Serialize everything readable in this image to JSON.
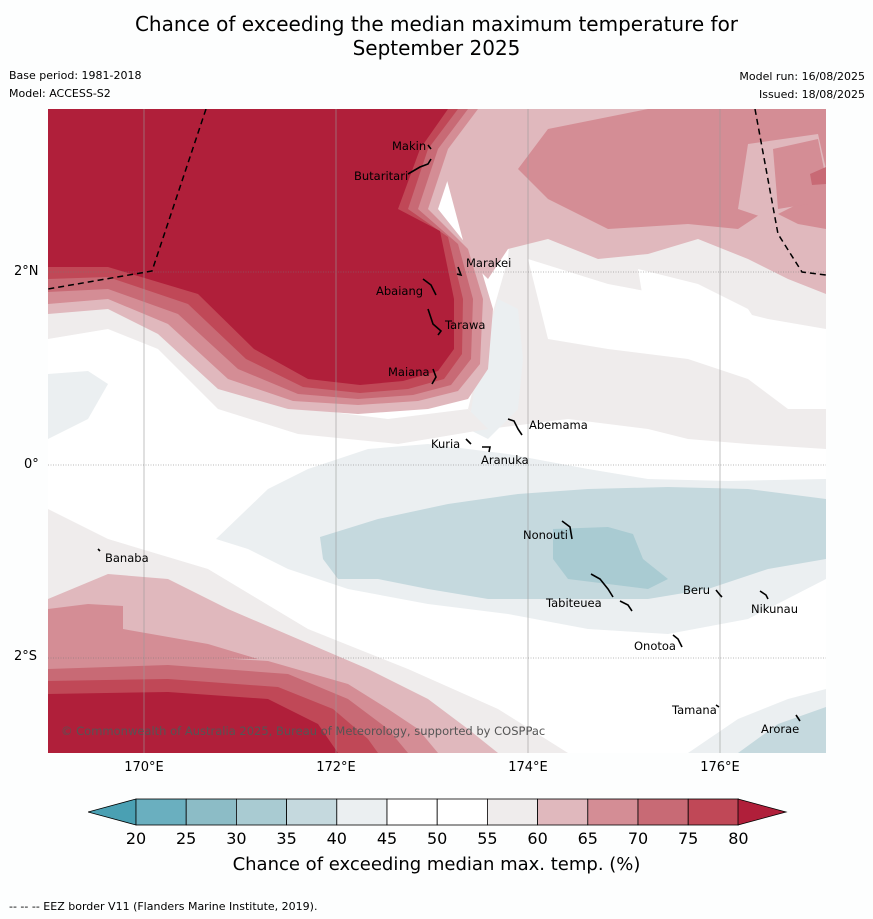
{
  "title_line1": "Chance of exceeding the median maximum temperature for",
  "title_line2": "September 2025",
  "base_period": "Base period: 1981-2018",
  "model": "Model: ACCESS-S2",
  "model_run": "Model run: 16/08/2025",
  "issued": "Issued: 18/08/2025",
  "lat_labels": [
    "2°N",
    "0°",
    "2°S"
  ],
  "lon_labels": [
    "170°E",
    "172°E",
    "174°E",
    "176°E"
  ],
  "islands": [
    "Makin",
    "Butaritari",
    "Marakei",
    "Abaiang",
    "Tarawa",
    "Maiana",
    "Abemama",
    "Kuria",
    "Aranuka",
    "Banaba",
    "Nonouti",
    "Beru",
    "Tabiteuea",
    "Nikunau",
    "Onotoa",
    "Tamana",
    "Arorae"
  ],
  "credit": "© Commonwealth of Australia 2025, Bureau of Meteorology, supported by COSPPac",
  "colorbar": {
    "ticks": [
      "20",
      "25",
      "30",
      "35",
      "40",
      "45",
      "50",
      "55",
      "60",
      "65",
      "70",
      "75",
      "80"
    ],
    "colors": [
      "#6aafbf",
      "#8cbcc6",
      "#a9cbd2",
      "#c5d9de",
      "#ebeff1",
      "#ffffff",
      "#ffffff",
      "#efecec",
      "#e0b8bd",
      "#d48d95",
      "#c86a75",
      "#c04857"
    ],
    "low_color": "#4aa0b3",
    "high_color": "#b01f3a",
    "label": "Chance of exceeding median max. temp. (%)"
  },
  "footer": "--  --  -- EEZ border V11 (Flanders Marine Institute, 2019)."
}
